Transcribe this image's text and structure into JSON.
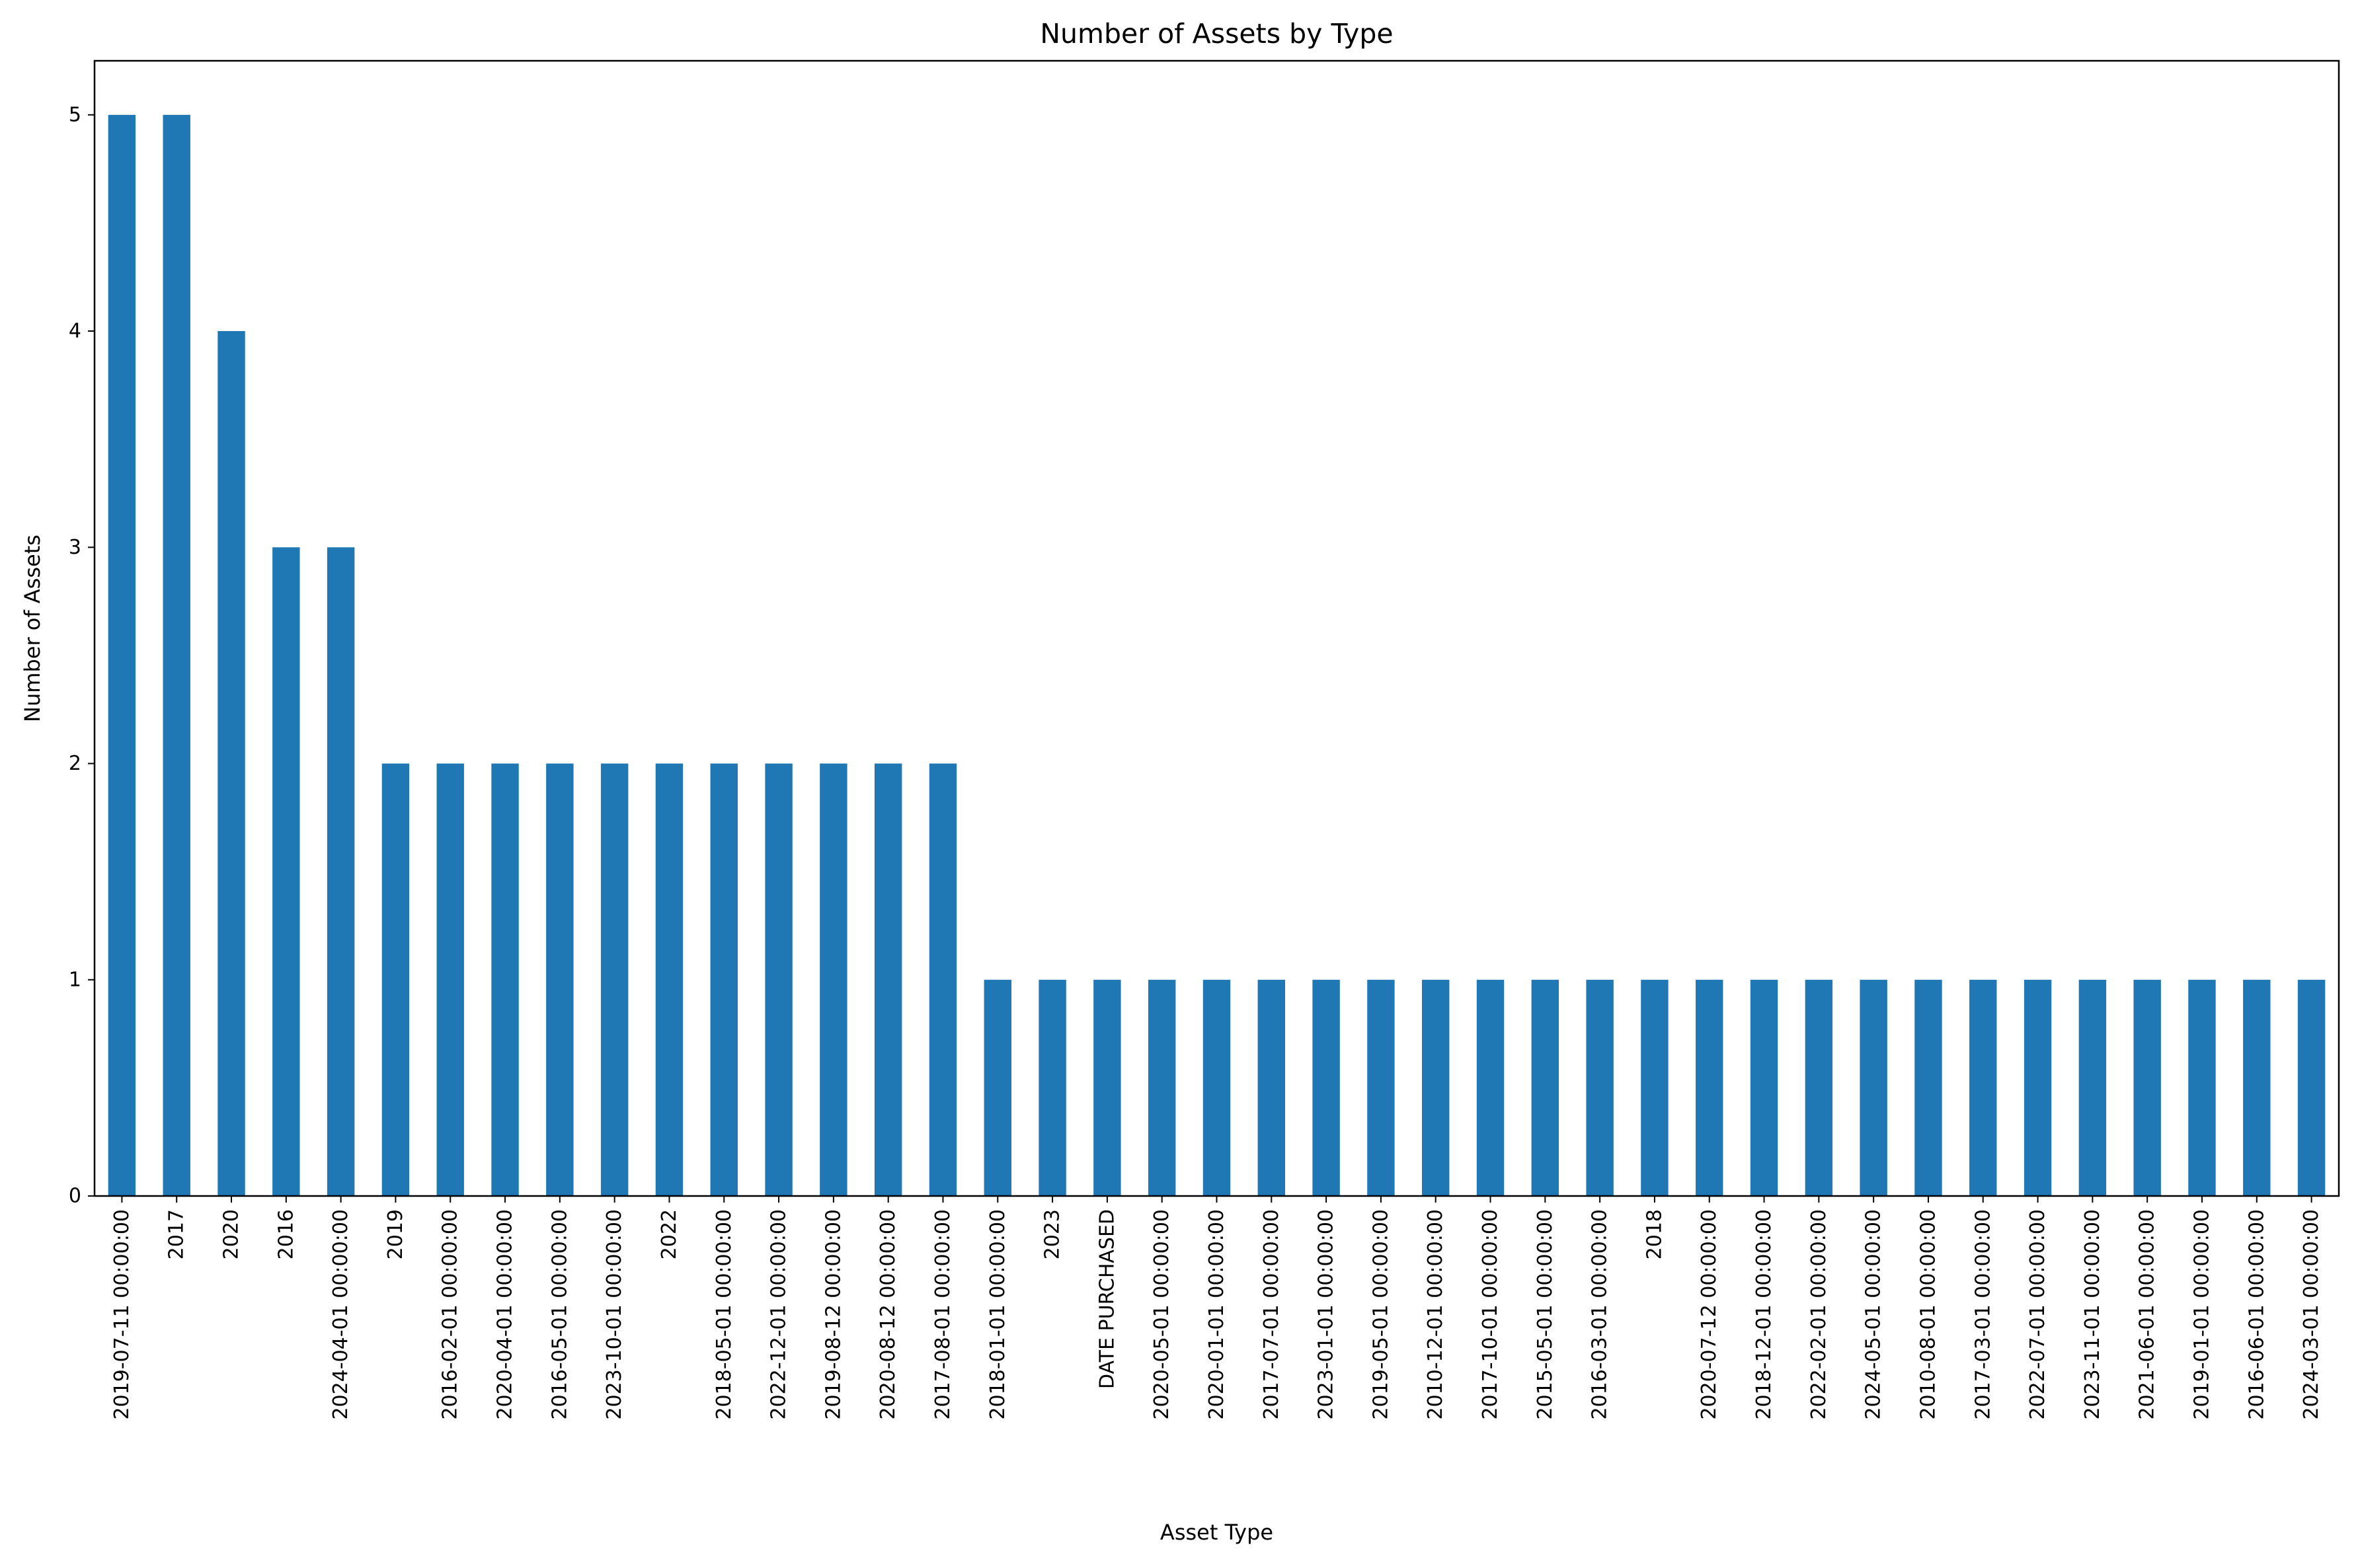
{
  "chart_data": {
    "type": "bar",
    "title": "Number of Assets by Type",
    "xlabel": "Asset Type",
    "ylabel": "Number of Assets",
    "ylim": [
      0,
      5.25
    ],
    "yticks": [
      0,
      1,
      2,
      3,
      4,
      5
    ],
    "grid": false,
    "legend": "none",
    "bar_color": "#1f77b4",
    "categories": [
      "2019-07-11 00:00:00",
      "2017",
      "2020",
      "2016",
      "2024-04-01 00:00:00",
      "2019",
      "2016-02-01 00:00:00",
      "2020-04-01 00:00:00",
      "2016-05-01 00:00:00",
      "2023-10-01 00:00:00",
      "2022",
      "2018-05-01 00:00:00",
      "2022-12-01 00:00:00",
      "2019-08-12 00:00:00",
      "2020-08-12 00:00:00",
      "2017-08-01 00:00:00",
      "2018-01-01 00:00:00",
      "2023",
      "DATE PURCHASED",
      "2020-05-01 00:00:00",
      "2020-01-01 00:00:00",
      "2017-07-01 00:00:00",
      "2023-01-01 00:00:00",
      "2019-05-01 00:00:00",
      "2010-12-01 00:00:00",
      "2017-10-01 00:00:00",
      "2015-05-01 00:00:00",
      "2016-03-01 00:00:00",
      "2018",
      "2020-07-12 00:00:00",
      "2018-12-01 00:00:00",
      "2022-02-01 00:00:00",
      "2024-05-01 00:00:00",
      "2010-08-01 00:00:00",
      "2017-03-01 00:00:00",
      "2022-07-01 00:00:00",
      "2023-11-01 00:00:00",
      "2021-06-01 00:00:00",
      "2019-01-01 00:00:00",
      "2016-06-01 00:00:00",
      "2024-03-01 00:00:00"
    ],
    "values": [
      5,
      5,
      4,
      3,
      3,
      2,
      2,
      2,
      2,
      2,
      2,
      2,
      2,
      2,
      2,
      2,
      1,
      1,
      1,
      1,
      1,
      1,
      1,
      1,
      1,
      1,
      1,
      1,
      1,
      1,
      1,
      1,
      1,
      1,
      1,
      1,
      1,
      1,
      1,
      1,
      1
    ]
  }
}
